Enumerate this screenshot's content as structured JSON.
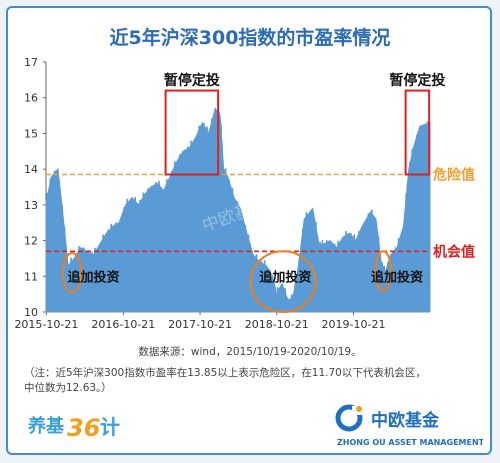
{
  "chart_data": {
    "type": "area",
    "title": "近5年沪深300指数的市盈率情况",
    "ylim": [
      10,
      17
    ],
    "yticks": [
      10,
      11,
      12,
      13,
      14,
      15,
      16,
      17
    ],
    "xtick_labels": [
      "2015-10-21",
      "2016-10-21",
      "2017-10-21",
      "2018-10-21",
      "2019-10-21"
    ],
    "x_start": "2015-10-19",
    "x_end": "2020-10-19",
    "danger_line": {
      "value": 13.85,
      "label": "危险值",
      "color": "#f0a030"
    },
    "chance_line": {
      "value": 11.7,
      "label": "机会值",
      "color": "#e02020"
    },
    "area_color": "#5b9bd5",
    "series": [
      {
        "x": [
          "2015-10-19",
          "2015-11-15",
          "2015-12-15",
          "2016-01-10",
          "2016-02-01",
          "2016-03-01",
          "2016-04-01",
          "2016-05-01",
          "2016-06-01",
          "2016-07-01",
          "2016-08-01",
          "2016-09-01",
          "2016-10-01",
          "2016-11-01",
          "2016-12-01",
          "2017-01-01",
          "2017-02-01",
          "2017-03-01",
          "2017-04-01",
          "2017-05-01",
          "2017-06-01",
          "2017-07-01",
          "2017-08-01",
          "2017-09-01",
          "2017-10-01",
          "2017-11-01",
          "2017-12-01",
          "2018-01-01",
          "2018-01-25",
          "2018-02-10",
          "2018-03-01",
          "2018-04-01",
          "2018-05-01",
          "2018-06-01",
          "2018-07-01",
          "2018-08-01",
          "2018-09-01",
          "2018-10-01",
          "2018-10-20",
          "2018-11-15",
          "2018-12-15",
          "2019-01-05",
          "2019-02-01",
          "2019-03-01",
          "2019-04-10",
          "2019-05-10",
          "2019-06-01",
          "2019-07-01",
          "2019-08-01",
          "2019-09-01",
          "2019-10-01",
          "2019-11-01",
          "2019-12-01",
          "2020-01-10",
          "2020-02-05",
          "2020-03-01",
          "2020-03-20",
          "2020-04-15",
          "2020-05-15",
          "2020-06-15",
          "2020-07-10",
          "2020-08-01",
          "2020-09-01",
          "2020-10-19"
        ],
        "values": [
          13.1,
          13.8,
          14.0,
          12.6,
          11.3,
          11.5,
          11.8,
          11.7,
          11.6,
          11.9,
          12.2,
          12.4,
          12.5,
          13.0,
          13.2,
          13.0,
          13.3,
          13.5,
          13.6,
          13.4,
          13.8,
          14.2,
          14.5,
          14.6,
          14.9,
          15.3,
          15.0,
          15.7,
          15.5,
          14.0,
          13.8,
          13.2,
          12.9,
          12.2,
          11.6,
          11.4,
          11.3,
          11.0,
          10.5,
          10.8,
          10.3,
          10.4,
          11.3,
          12.6,
          12.9,
          11.9,
          11.9,
          12.0,
          11.8,
          12.1,
          12.2,
          12.0,
          12.4,
          12.8,
          12.6,
          11.4,
          11.1,
          11.6,
          11.8,
          12.4,
          14.0,
          14.6,
          15.2,
          15.3
        ]
      }
    ],
    "annotations": [
      {
        "text": "暂停定投",
        "shape": "rect",
        "color": "#e02020",
        "x_from": "2017-05-10",
        "x_to": "2018-01-15",
        "y_from": 13.85,
        "y_to": 16.2,
        "label_y": 16.35
      },
      {
        "text": "暂停定投",
        "shape": "rect",
        "color": "#e02020",
        "x_from": "2020-06-25",
        "x_to": "2020-10-15",
        "y_from": 13.85,
        "y_to": 16.2,
        "label_y": 16.35
      },
      {
        "text": "追加投资",
        "shape": "ellipse",
        "color": "#f07c1a",
        "cx": "2016-02-20",
        "cy": 11.1,
        "rx_days": 45,
        "ry": 0.55,
        "label_x": "2016-06-01",
        "label_y": 11.0
      },
      {
        "text": "追加投资",
        "shape": "ellipse",
        "color": "#f07c1a",
        "cx": "2018-11-20",
        "cy": 10.85,
        "rx_days": 155,
        "ry": 0.85,
        "label_x": "2018-12-01",
        "label_y": 11.0
      },
      {
        "text": "追加投资",
        "shape": "ellipse",
        "color": "#f07c1a",
        "cx": "2020-03-10",
        "cy": 11.15,
        "rx_days": 38,
        "ry": 0.55,
        "label_x": "2020-05-15",
        "label_y": 11.0
      }
    ],
    "watermark": "中欧基金 养基36计"
  },
  "source": "数据来源：wind，2015/10/19-2020/10/19。",
  "note_line1": "（注：近5年沪深300指数市盈率在13.85以上表示危险区，在11.70以下代表机会区，",
  "note_line2": "中位数为12.63。）",
  "logo_left": {
    "text1": "养基",
    "text2": "36",
    "text3": "计"
  },
  "logo_right": {
    "name": "中欧基金",
    "english": "ZHONG OU ASSET MANAGEMENT"
  }
}
